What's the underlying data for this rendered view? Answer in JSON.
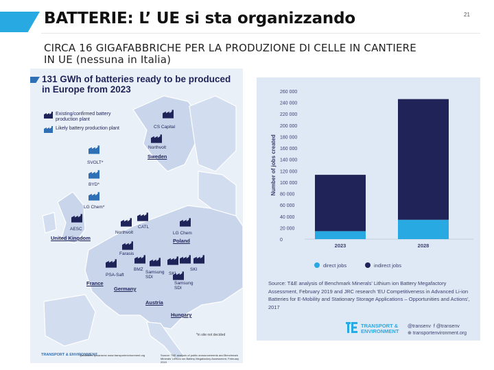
{
  "slide": {
    "title": "BATTERIE: L’ UE si sta organizzando",
    "number": "21",
    "subtitle": "CIRCA 16 GIGAFABBRICHE PER LA PRODUZIONE DI CELLE IN CANTIERE IN UE (nessuna in Italia)",
    "accent_color": "#29a9e1"
  },
  "map": {
    "heading": "131 GWh of batteries ready to be produced in Europe from 2023",
    "legend": {
      "confirmed": "Existing/confirmed battery production plant",
      "likely": "Likely battery production plant"
    },
    "plants": [
      "CS Capital",
      "Northvolt",
      "SVOLT*",
      "BYD*",
      "LG Chem*",
      "AESC",
      "Northvolt",
      "CATL",
      "LG Chem",
      "Farasis",
      "BMZ",
      "Samsung SDI",
      "SKI",
      "PSA-Saft",
      "Samsung SDI"
    ],
    "countries": [
      "Sweden",
      "United Kingdom",
      "Poland",
      "France",
      "Germany",
      "Austria",
      "Hungary"
    ],
    "footnote": "*in site not decided",
    "footer": {
      "logo": "TRANSPORT & ENVIRONMENT",
      "social": "@transenv  @transenv  www.transportenvironment.org",
      "source": "Source: T&E analysis of public announcements and Benchmark Minerals' Lithium ion Battery Megafactory Assessment, February 2019"
    },
    "colors": {
      "background": "#eaf0f8",
      "land": "#c8d5ea",
      "confirmed": "#1e2358",
      "likely": "#2f6fb5"
    }
  },
  "chart_data": {
    "type": "bar",
    "ylabel": "Number of jobs created",
    "categories": [
      "2023",
      "2028"
    ],
    "stacked": true,
    "series": [
      {
        "name": "direct jobs",
        "values": [
          14000,
          34000
        ],
        "color": "#29a9e1"
      },
      {
        "name": "indirect jobs",
        "values": [
          99000,
          212000
        ],
        "color": "#1f2357"
      }
    ],
    "ylim": [
      0,
      260000
    ],
    "yticks": [
      "0",
      "20 000",
      "40 000",
      "60 000",
      "80 000",
      "100 000",
      "120 000",
      "140 000",
      "160 000",
      "180 000",
      "200 000",
      "220 000",
      "240 000",
      "260 000"
    ],
    "legend_position": "bottom",
    "grid": false
  },
  "chart_panel": {
    "source": "Source: T&E analysis of Benchmark Minerals' Lithium ion Battery Megafactory Assessment, February 2019 and JRC research 'EU Competitiveness in Advanced Li-ion Batteries for E-Mobility and Stationary Storage Applications – Opportunities and Actions', 2017",
    "logo_line1": "TRANSPORT &",
    "logo_line2": "ENVIRONMENT",
    "social_twitter": "@transenv",
    "social_facebook": "@transenv",
    "social_web": "transportenvironment.org"
  }
}
